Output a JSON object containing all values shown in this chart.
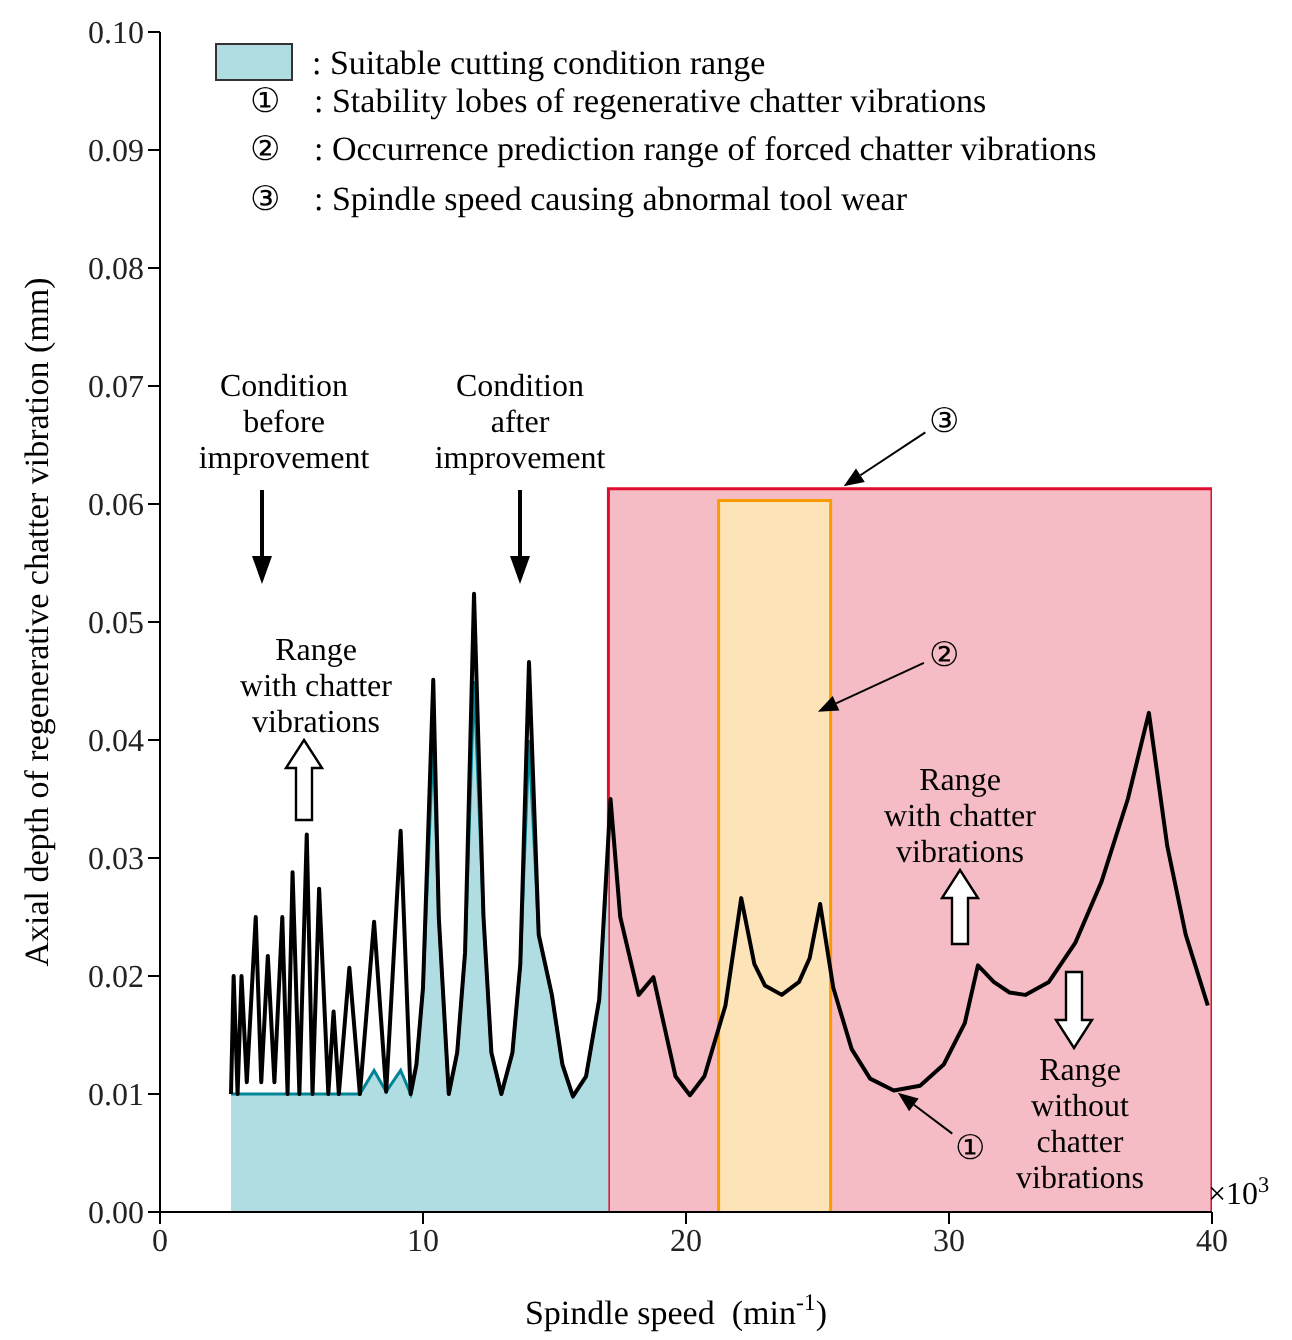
{
  "chart_data": {
    "type": "line",
    "xlabel": "Spindle speed  (min$^{-1}$)",
    "ylabel": "Axial depth of regenerative chatter vibration  (mm)",
    "xlim": [
      0,
      40
    ],
    "xticks": [
      0,
      10,
      20,
      30,
      40
    ],
    "ylim": [
      0,
      0.1
    ],
    "yticks": [
      {
        "value": 0,
        "label": "0.00"
      },
      0.01,
      0.02,
      0.03,
      0.04,
      0.05,
      0.06,
      0.07,
      0.08,
      0.09,
      {
        "value": 0.1,
        "label": "0.10"
      }
    ],
    "legend": "top left",
    "series": [
      {
        "type": "area",
        "name": ": Suitable cutting condition range",
        "color": "#b0dde2",
        "x": [
          2.7,
          2.8,
          2.95,
          3.1,
          3.3,
          3.64,
          3.85,
          4.1,
          4.35,
          4.65,
          4.85,
          5.04,
          5.3,
          5.58,
          5.8,
          6.05,
          6.4,
          6.6,
          6.8,
          7.2,
          7.6,
          8.14,
          8.6,
          9.15,
          9.53,
          9.75,
          10.0,
          10.39,
          10.6,
          10.98,
          11.3,
          11.6,
          11.94,
          12.3,
          12.6,
          12.98,
          13.4,
          13.7,
          14.03,
          14.4,
          14.9,
          15.3,
          15.7,
          16.2,
          16.7,
          17.05
        ],
        "values": [
          0.01,
          0.01,
          0.01,
          0.01,
          0.01,
          0.01,
          0.01,
          0.01,
          0.01,
          0.01,
          0.01,
          0.01,
          0.01,
          0.01,
          0.01,
          0.01,
          0.01,
          0.01,
          0.01,
          0.01,
          0.01,
          0.012,
          0.0102,
          0.012,
          0.01,
          0.0125,
          0.019,
          0.04,
          0.025,
          0.01,
          0.0135,
          0.022,
          0.045,
          0.025,
          0.0135,
          0.01,
          0.0135,
          0.021,
          0.04,
          0.0235,
          0.0184,
          0.0125,
          0.0098,
          0.0115,
          0.018,
          0.031
        ]
      },
      {
        "color": "#000000",
        "x": [
          2.7,
          2.8,
          2.95,
          3.1,
          3.3,
          3.64,
          3.85,
          4.1,
          4.35,
          4.65,
          4.85,
          5.04,
          5.3,
          5.58,
          5.8,
          6.05,
          6.4,
          6.6,
          6.8,
          7.2,
          7.6,
          8.14,
          8.6,
          9.15,
          9.53,
          9.75,
          10.0,
          10.39,
          10.6,
          10.98,
          11.3,
          11.6,
          11.94,
          12.3,
          12.6,
          12.98,
          13.4,
          13.7,
          14.03,
          14.4,
          14.9,
          15.3,
          15.7,
          16.2,
          16.7,
          17.13,
          17.5,
          18.2,
          18.76,
          19.2,
          19.6,
          20.15,
          20.7,
          21.5,
          22.1,
          22.6,
          23.0,
          23.64,
          24.3,
          24.7,
          25.1,
          25.6,
          26.3,
          27.0,
          27.9,
          28.9,
          29.8,
          30.6,
          31.1,
          31.7,
          32.3,
          32.9,
          33.8,
          34.8,
          35.8,
          36.8,
          37.6,
          38.3,
          39.0,
          39.84
        ],
        "values": [
          0.01,
          0.02,
          0.01,
          0.02,
          0.011,
          0.025,
          0.011,
          0.0217,
          0.011,
          0.025,
          0.01,
          0.0288,
          0.01,
          0.032,
          0.01,
          0.0274,
          0.01,
          0.017,
          0.01,
          0.0207,
          0.01,
          0.0246,
          0.0102,
          0.0323,
          0.01,
          0.0125,
          0.019,
          0.0451,
          0.025,
          0.01,
          0.0135,
          0.022,
          0.0524,
          0.025,
          0.0135,
          0.01,
          0.0135,
          0.021,
          0.0466,
          0.0235,
          0.0184,
          0.0125,
          0.0098,
          0.0115,
          0.018,
          0.035,
          0.025,
          0.0184,
          0.0199,
          0.0155,
          0.0115,
          0.0099,
          0.0115,
          0.0175,
          0.0266,
          0.021,
          0.0192,
          0.0184,
          0.0195,
          0.0215,
          0.0261,
          0.019,
          0.0138,
          0.0113,
          0.0103,
          0.0107,
          0.0125,
          0.016,
          0.0209,
          0.0195,
          0.0186,
          0.0184,
          0.0195,
          0.0228,
          0.028,
          0.035,
          0.0423,
          0.031,
          0.0235,
          0.0175
        ]
      },
      {
        "type": "area",
        "color": "#fde3b8",
        "x": [
          21.24,
          21.24,
          25.5,
          25.5
        ],
        "values": [
          0,
          0.0603,
          0.0603,
          0
        ]
      },
      {
        "type": "area",
        "color": "#f6bcc5",
        "x": [
          17.05,
          17.05,
          40,
          40
        ],
        "values": [
          0,
          0.0613,
          0.0613,
          0
        ]
      }
    ],
    "annotations": [
      "①    : Stability lobes of regenerative chatter vibrations",
      "②    : Occurrence prediction range of forced chatter vibrations",
      "③    : Spindle speed causing abnormal tool wear",
      "Condition\nbefore\nimprovement",
      "Condition\nafter\nimprovement",
      "Range\nwith chatter\nvibrations",
      "Range\nwith chatter\nvibrations",
      "Range\nwithout\nchatter\nvibrations",
      {
        "text": "①",
        "x": 28.6,
        "y": 0.0101
      },
      {
        "text": "②",
        "x": 25.5,
        "y": 0.0424
      },
      {
        "text": "③",
        "x": 26.5,
        "y": 0.0615
      },
      "×10$^{3}$"
    ]
  }
}
